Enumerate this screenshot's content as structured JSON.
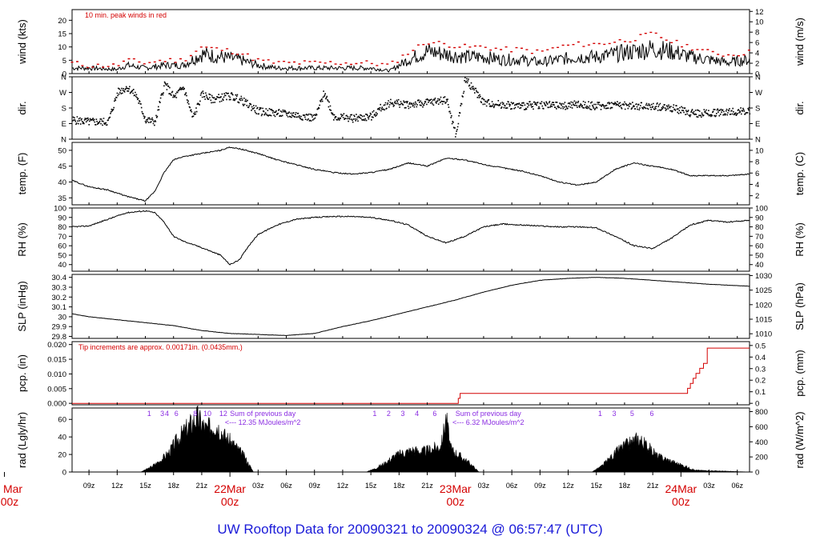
{
  "title": "UW Rooftop Data for 20090321  to  20090324 @ 06:57:47  (UTC)",
  "colors": {
    "axis": "#000000",
    "accent": "#d40000",
    "note": "#8a2be2",
    "title": "#1a1ad8"
  },
  "time_axis": {
    "tick_labels": [
      "09z",
      "12z",
      "15z",
      "18z",
      "21z",
      "03z",
      "06z",
      "09z",
      "12z",
      "15z",
      "18z",
      "21z",
      "03z",
      "06z",
      "09z",
      "12z",
      "15z",
      "18z",
      "21z",
      "03z",
      "06z"
    ],
    "tick_hours": [
      9,
      12,
      15,
      18,
      21,
      27,
      30,
      33,
      36,
      39,
      42,
      45,
      51,
      54,
      57,
      60,
      63,
      66,
      69,
      75,
      78
    ],
    "day_labels": [
      {
        "date": "Mar",
        "time": "00z",
        "hour": 0
      },
      {
        "date": "22Mar",
        "time": "00z",
        "hour": 24
      },
      {
        "date": "23Mar",
        "time": "00z",
        "hour": 48
      },
      {
        "date": "24Mar",
        "time": "00z",
        "hour": 72
      }
    ],
    "range_hours": [
      7.2,
      79.3
    ]
  },
  "chart_data": [
    {
      "type": "line",
      "name": "wind",
      "ylabel": "wind (kts)",
      "ylabel_right": "wind (m/s)",
      "ylim": [
        0,
        24
      ],
      "yticks": [
        0,
        5,
        10,
        15,
        20
      ],
      "right_ylim": [
        0,
        12.35
      ],
      "right_yticks": [
        0,
        2,
        4,
        6,
        8,
        10,
        12
      ],
      "annotation": "10 min. peak winds in red",
      "x_hours": [
        7.2,
        9,
        12,
        13,
        15,
        17,
        19,
        21,
        23,
        25,
        27,
        29,
        31,
        33,
        35,
        37,
        39,
        41,
        43,
        45,
        47,
        49,
        51,
        53,
        55,
        57,
        59,
        61,
        63,
        65,
        67,
        69,
        71,
        73,
        75,
        77,
        79.3
      ],
      "values": [
        2,
        2,
        1.5,
        3,
        2,
        3,
        3,
        7,
        6,
        5,
        3,
        2,
        2,
        2,
        2,
        2,
        2,
        1,
        5,
        8,
        7,
        6,
        6,
        5,
        5,
        4,
        5,
        6,
        6,
        7,
        8,
        9,
        8,
        6,
        5,
        4,
        5
      ],
      "peak_values": [
        4,
        3,
        3,
        5,
        4,
        5,
        5,
        10,
        9,
        8,
        5,
        4,
        4,
        4,
        4,
        4,
        4,
        3,
        8,
        12,
        11,
        10,
        10,
        9,
        9,
        8,
        10,
        11,
        11,
        12,
        13,
        15,
        12,
        10,
        8,
        7,
        8
      ]
    },
    {
      "type": "scatter",
      "name": "dir",
      "ylabel": "dir.",
      "ylabel_right": "dir.",
      "ytick_labels": [
        "N",
        "E",
        "S",
        "W",
        "N"
      ],
      "ytick_degrees": [
        0,
        90,
        180,
        270,
        360
      ],
      "ylim": [
        0,
        360
      ],
      "x_hours": [
        7.2,
        9,
        11,
        12,
        13,
        14,
        15,
        16,
        17,
        18,
        19,
        20,
        21,
        22,
        23,
        24,
        25,
        27,
        29,
        31,
        33,
        34,
        35,
        37,
        39,
        40,
        41,
        43,
        45,
        47,
        48,
        49,
        51,
        53,
        55,
        57,
        59,
        61,
        63,
        65,
        67,
        69,
        71,
        73,
        75,
        77,
        79.3
      ],
      "values": [
        110,
        100,
        100,
        270,
        300,
        250,
        110,
        100,
        320,
        240,
        300,
        120,
        260,
        230,
        240,
        250,
        230,
        160,
        150,
        140,
        120,
        270,
        130,
        120,
        130,
        180,
        210,
        200,
        210,
        230,
        20,
        350,
        210,
        200,
        190,
        200,
        190,
        200,
        190,
        200,
        190,
        190,
        180,
        150,
        150,
        160,
        160
      ]
    },
    {
      "type": "line",
      "name": "temp",
      "ylabel": "temp. (F)",
      "ylabel_right": "temp. (C)",
      "ylim": [
        32.8,
        52.5
      ],
      "yticks": [
        35,
        40,
        45,
        50
      ],
      "right_ylim": [
        0.4,
        11.4
      ],
      "right_yticks": [
        2,
        4,
        6,
        8,
        10
      ],
      "x_hours": [
        7.2,
        9,
        11,
        13,
        15,
        16,
        17,
        18,
        19,
        21,
        23,
        24,
        25,
        27,
        29,
        31,
        33,
        35,
        37,
        39,
        41,
        43,
        45,
        47,
        49,
        51,
        53,
        55,
        57,
        59,
        61,
        63,
        65,
        67,
        69,
        71,
        73,
        75,
        77,
        79.3
      ],
      "values": [
        40.5,
        38.5,
        37.5,
        35.5,
        34,
        37,
        43,
        47,
        48,
        49,
        50,
        51,
        50.5,
        49,
        47,
        45.5,
        44,
        43,
        42.5,
        43,
        44,
        46,
        45,
        47.5,
        47,
        45.5,
        44.5,
        43.5,
        42,
        40,
        39,
        40,
        44,
        46,
        45,
        44,
        42,
        42,
        42,
        42.5
      ]
    },
    {
      "type": "line",
      "name": "rh",
      "ylabel": "RH (%)",
      "ylabel_right": "RH (%)",
      "ylim": [
        33,
        100
      ],
      "yticks": [
        40,
        50,
        60,
        70,
        80,
        90,
        100
      ],
      "right_ylim": [
        33,
        100
      ],
      "right_yticks": [
        40,
        50,
        60,
        70,
        80,
        90,
        100
      ],
      "x_hours": [
        7.2,
        9,
        11,
        13,
        15,
        16,
        17,
        18,
        19,
        21,
        23,
        24,
        25,
        26,
        27,
        29,
        31,
        33,
        35,
        37,
        39,
        41,
        43,
        45,
        47,
        49,
        51,
        53,
        55,
        57,
        59,
        61,
        63,
        65,
        67,
        69,
        71,
        73,
        75,
        77,
        79.3
      ],
      "values": [
        80,
        81,
        88,
        95,
        97,
        95,
        85,
        70,
        65,
        58,
        50,
        40,
        45,
        60,
        72,
        82,
        88,
        90,
        91,
        91,
        90,
        87,
        82,
        70,
        63,
        70,
        80,
        83,
        82,
        81,
        80,
        80,
        79,
        70,
        60,
        57,
        68,
        82,
        87,
        85,
        87
      ]
    },
    {
      "type": "line",
      "name": "slp",
      "ylabel": "SLP (inHg)",
      "ylabel_right": "SLP (hPa)",
      "ylim": [
        29.78,
        30.43
      ],
      "yticks": [
        29.8,
        29.9,
        30.0,
        30.1,
        30.2,
        30.3,
        30.4
      ],
      "right_ylim": [
        1008.4,
        1030.4
      ],
      "right_yticks": [
        1010,
        1015,
        1020,
        1025,
        1030
      ],
      "x_hours": [
        7.2,
        9,
        12,
        15,
        18,
        21,
        24,
        27,
        30,
        33,
        36,
        39,
        42,
        45,
        48,
        51,
        54,
        57,
        60,
        63,
        66,
        69,
        72,
        75,
        79.3
      ],
      "values": [
        30.03,
        30.0,
        29.97,
        29.94,
        29.91,
        29.86,
        29.83,
        29.82,
        29.81,
        29.83,
        29.9,
        29.96,
        30.03,
        30.1,
        30.17,
        30.25,
        30.32,
        30.37,
        30.39,
        30.4,
        30.39,
        30.37,
        30.35,
        30.33,
        30.31
      ]
    },
    {
      "type": "line",
      "name": "pcp",
      "ylabel": "pcp. (in)",
      "ylabel_right": "pcp. (mm)",
      "ylim": [
        -0.0005,
        0.021
      ],
      "yticks": [
        0,
        0.005,
        0.01,
        0.015,
        0.02
      ],
      "ytick_labels": [
        "0.000",
        "0.005",
        "0.010",
        "0.015",
        "0.020"
      ],
      "right_ylim": [
        -0.0127,
        0.5334
      ],
      "right_yticks": [
        0,
        0.1,
        0.2,
        0.3,
        0.4,
        0.5
      ],
      "annotation": "Tip increments are approx. 0.00171in. (0.0435mm.)",
      "x_hours": [
        7.2,
        48,
        48.3,
        48.5,
        72.5,
        72.7,
        73,
        73.3,
        73.6,
        74,
        74.4,
        74.8,
        79.3
      ],
      "values": [
        0,
        0,
        0.0017,
        0.0034,
        0.0034,
        0.0051,
        0.0068,
        0.0085,
        0.0102,
        0.0119,
        0.0136,
        0.0188,
        0.0188
      ]
    },
    {
      "type": "area",
      "name": "rad",
      "ylabel": "rad (Lgly/hr)",
      "ylabel_right": "rad (W/m^2)",
      "ylim": [
        0,
        73
      ],
      "yticks": [
        0,
        20,
        40,
        60
      ],
      "right_ylim": [
        0,
        848
      ],
      "right_yticks": [
        0,
        200,
        400,
        600,
        800
      ],
      "x_hours": [
        7.2,
        14.5,
        15.5,
        16.5,
        17.5,
        18.5,
        19.5,
        20.5,
        21.5,
        22.5,
        23.5,
        24.5,
        25.5,
        26.5,
        38.5,
        39.5,
        40.5,
        41.5,
        42.5,
        43.5,
        44.5,
        45.5,
        46.5,
        47,
        47.5,
        48.5,
        49.5,
        50.5,
        62.5,
        63.5,
        64.5,
        65.5,
        66.5,
        67.5,
        68.5,
        69.5,
        70.5,
        71.5,
        72.5,
        73.5,
        79.3
      ],
      "values": [
        0,
        0,
        5,
        12,
        22,
        38,
        50,
        62,
        48,
        55,
        40,
        30,
        18,
        0,
        0,
        4,
        10,
        18,
        22,
        25,
        23,
        26,
        30,
        62,
        26,
        18,
        10,
        0,
        0,
        6,
        16,
        26,
        32,
        38,
        28,
        18,
        14,
        10,
        6,
        2,
        0
      ],
      "hour_marks": [
        {
          "label": "1",
          "hour": 15.4
        },
        {
          "label": "3",
          "hour": 16.8
        },
        {
          "label": "4",
          "hour": 17.3
        },
        {
          "label": "6",
          "hour": 18.3
        },
        {
          "label": "8",
          "hour": 20.3
        },
        {
          "label": "10",
          "hour": 21.6
        },
        {
          "label": "12",
          "hour": 23.3
        },
        {
          "label": "1",
          "hour": 39.4
        },
        {
          "label": "2",
          "hour": 40.9
        },
        {
          "label": "3",
          "hour": 42.4
        },
        {
          "label": "4",
          "hour": 43.9
        },
        {
          "label": "6",
          "hour": 45.8
        },
        {
          "label": "1",
          "hour": 63.4
        },
        {
          "label": "3",
          "hour": 64.9
        },
        {
          "label": "5",
          "hour": 66.8
        },
        {
          "label": "6",
          "hour": 68.9
        }
      ],
      "notes": [
        {
          "line1": "Sum of previous day",
          "line2": "<--- 12.35 MJoules/m^2",
          "hour": 27.5
        },
        {
          "line1": "Sum of previous day",
          "line2": "<--- 6.32 MJoules/m^2",
          "hour": 51.5
        }
      ]
    }
  ]
}
